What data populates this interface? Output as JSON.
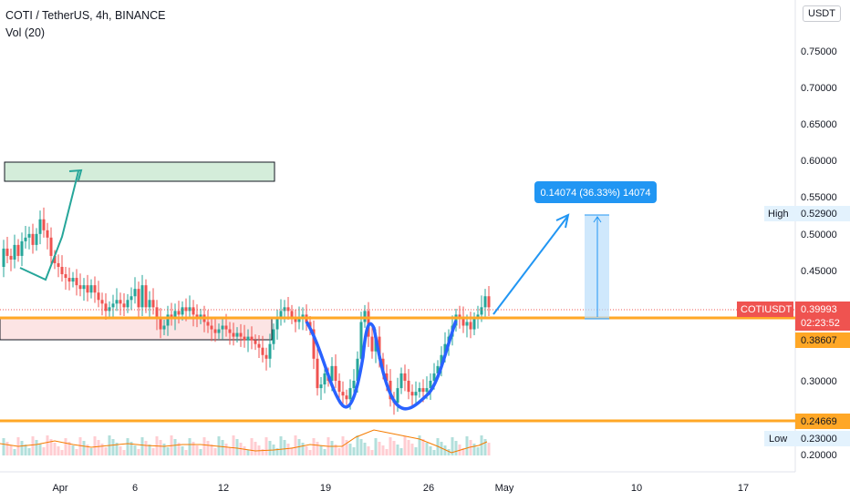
{
  "header": {
    "symbol_title": "COTI / TetherUS, 4h, BINANCE",
    "indicator": "Vol (20)",
    "currency_button": "USDT"
  },
  "price_axis": {
    "ticks": [
      "0.75000",
      "0.70000",
      "0.65000",
      "0.60000",
      "0.55000",
      "0.50000",
      "0.45000",
      "0.30000",
      "0.20000"
    ],
    "high_label": "High",
    "high_value": "0.52900",
    "low_label": "Low",
    "low_value": "0.23000",
    "symbol_badge": "COTIUSDT",
    "last_price": "0.39993",
    "countdown": "02:23:52",
    "level_1": "0.38607",
    "level_2": "0.24669"
  },
  "time_axis": {
    "ticks": [
      "Apr",
      "6",
      "12",
      "19",
      "26",
      "May",
      "10",
      "17"
    ]
  },
  "measure_box": {
    "label": "0.14074 (36.33%) 14074"
  },
  "colors": {
    "up": "#26a69a",
    "down": "#ef5350",
    "support": "#ffa726",
    "pattern_line": "#2962ff",
    "arrow": "#2196f3",
    "green_zone": "#d4edda",
    "red_zone": "#fce4e4",
    "price_badge": "#ef5350",
    "volume_line": "#f57c00"
  },
  "chart_data": {
    "type": "candlestick",
    "title": "COTI / TetherUS, 4h, BINANCE",
    "ylim": [
      0.19,
      0.79
    ],
    "y_ticks": [
      0.2,
      0.3,
      0.45,
      0.5,
      0.55,
      0.6,
      0.65,
      0.7,
      0.75
    ],
    "x_ticks": [
      "Apr",
      "6",
      "12",
      "19",
      "26",
      "May",
      "10",
      "17"
    ],
    "price_path": [
      [
        0,
        0.455
      ],
      [
        4,
        0.48
      ],
      [
        8,
        0.47
      ],
      [
        12,
        0.465
      ],
      [
        16,
        0.485
      ],
      [
        20,
        0.47
      ],
      [
        24,
        0.49
      ],
      [
        28,
        0.495
      ],
      [
        32,
        0.5
      ],
      [
        36,
        0.485
      ],
      [
        40,
        0.5
      ],
      [
        44,
        0.52
      ],
      [
        48,
        0.505
      ],
      [
        52,
        0.495
      ],
      [
        56,
        0.47
      ],
      [
        60,
        0.46
      ],
      [
        64,
        0.455
      ],
      [
        68,
        0.445
      ],
      [
        72,
        0.44
      ],
      [
        76,
        0.435
      ],
      [
        80,
        0.44
      ],
      [
        84,
        0.43
      ],
      [
        88,
        0.425
      ],
      [
        92,
        0.43
      ],
      [
        96,
        0.42
      ],
      [
        100,
        0.43
      ],
      [
        104,
        0.42
      ],
      [
        108,
        0.41
      ],
      [
        112,
        0.405
      ],
      [
        116,
        0.395
      ],
      [
        120,
        0.4
      ],
      [
        124,
        0.405
      ],
      [
        128,
        0.41
      ],
      [
        132,
        0.405
      ],
      [
        136,
        0.4
      ],
      [
        140,
        0.41
      ],
      [
        144,
        0.415
      ],
      [
        148,
        0.425
      ],
      [
        152,
        0.4
      ],
      [
        156,
        0.43
      ],
      [
        160,
        0.4
      ],
      [
        164,
        0.41
      ],
      [
        168,
        0.4
      ],
      [
        172,
        0.385
      ],
      [
        176,
        0.37
      ],
      [
        180,
        0.375
      ],
      [
        184,
        0.39
      ],
      [
        188,
        0.385
      ],
      [
        192,
        0.395
      ],
      [
        196,
        0.39
      ],
      [
        200,
        0.4
      ],
      [
        204,
        0.395
      ],
      [
        208,
        0.4
      ],
      [
        212,
        0.39
      ],
      [
        216,
        0.385
      ],
      [
        220,
        0.39
      ],
      [
        224,
        0.38
      ],
      [
        228,
        0.375
      ],
      [
        232,
        0.37
      ],
      [
        236,
        0.365
      ],
      [
        240,
        0.37
      ],
      [
        244,
        0.375
      ],
      [
        248,
        0.37
      ],
      [
        252,
        0.365
      ],
      [
        256,
        0.36
      ],
      [
        260,
        0.365
      ],
      [
        264,
        0.36
      ],
      [
        268,
        0.355
      ],
      [
        272,
        0.36
      ],
      [
        276,
        0.355
      ],
      [
        280,
        0.35
      ],
      [
        284,
        0.345
      ],
      [
        288,
        0.335
      ],
      [
        292,
        0.33
      ],
      [
        296,
        0.35
      ],
      [
        300,
        0.37
      ],
      [
        304,
        0.385
      ],
      [
        308,
        0.395
      ],
      [
        312,
        0.4
      ],
      [
        316,
        0.395
      ],
      [
        320,
        0.385
      ],
      [
        324,
        0.38
      ],
      [
        328,
        0.385
      ],
      [
        332,
        0.39
      ],
      [
        336,
        0.38
      ],
      [
        340,
        0.37
      ],
      [
        344,
        0.33
      ],
      [
        348,
        0.29
      ],
      [
        352,
        0.295
      ],
      [
        356,
        0.31
      ],
      [
        360,
        0.3
      ],
      [
        364,
        0.32
      ],
      [
        368,
        0.3
      ],
      [
        372,
        0.285
      ],
      [
        376,
        0.28
      ],
      [
        380,
        0.275
      ],
      [
        384,
        0.29
      ],
      [
        388,
        0.3
      ],
      [
        392,
        0.33
      ],
      [
        396,
        0.38
      ],
      [
        400,
        0.395
      ],
      [
        404,
        0.36
      ],
      [
        408,
        0.34
      ],
      [
        412,
        0.36
      ],
      [
        416,
        0.33
      ],
      [
        420,
        0.31
      ],
      [
        424,
        0.3
      ],
      [
        428,
        0.275
      ],
      [
        432,
        0.27
      ],
      [
        436,
        0.29
      ],
      [
        440,
        0.31
      ],
      [
        444,
        0.3
      ],
      [
        448,
        0.285
      ],
      [
        452,
        0.28
      ],
      [
        456,
        0.285
      ],
      [
        460,
        0.29
      ],
      [
        464,
        0.285
      ],
      [
        468,
        0.29
      ],
      [
        472,
        0.3
      ],
      [
        476,
        0.31
      ],
      [
        480,
        0.32
      ],
      [
        484,
        0.335
      ],
      [
        488,
        0.35
      ],
      [
        492,
        0.36
      ],
      [
        496,
        0.375
      ],
      [
        500,
        0.39
      ],
      [
        504,
        0.385
      ],
      [
        508,
        0.375
      ],
      [
        512,
        0.38
      ],
      [
        516,
        0.37
      ],
      [
        520,
        0.385
      ],
      [
        524,
        0.39
      ],
      [
        528,
        0.4
      ],
      [
        532,
        0.415
      ],
      [
        536,
        0.4
      ]
    ],
    "support_levels": [
      0.38607,
      0.24669
    ],
    "high": 0.529,
    "low": 0.23,
    "last_price": 0.39993
  }
}
